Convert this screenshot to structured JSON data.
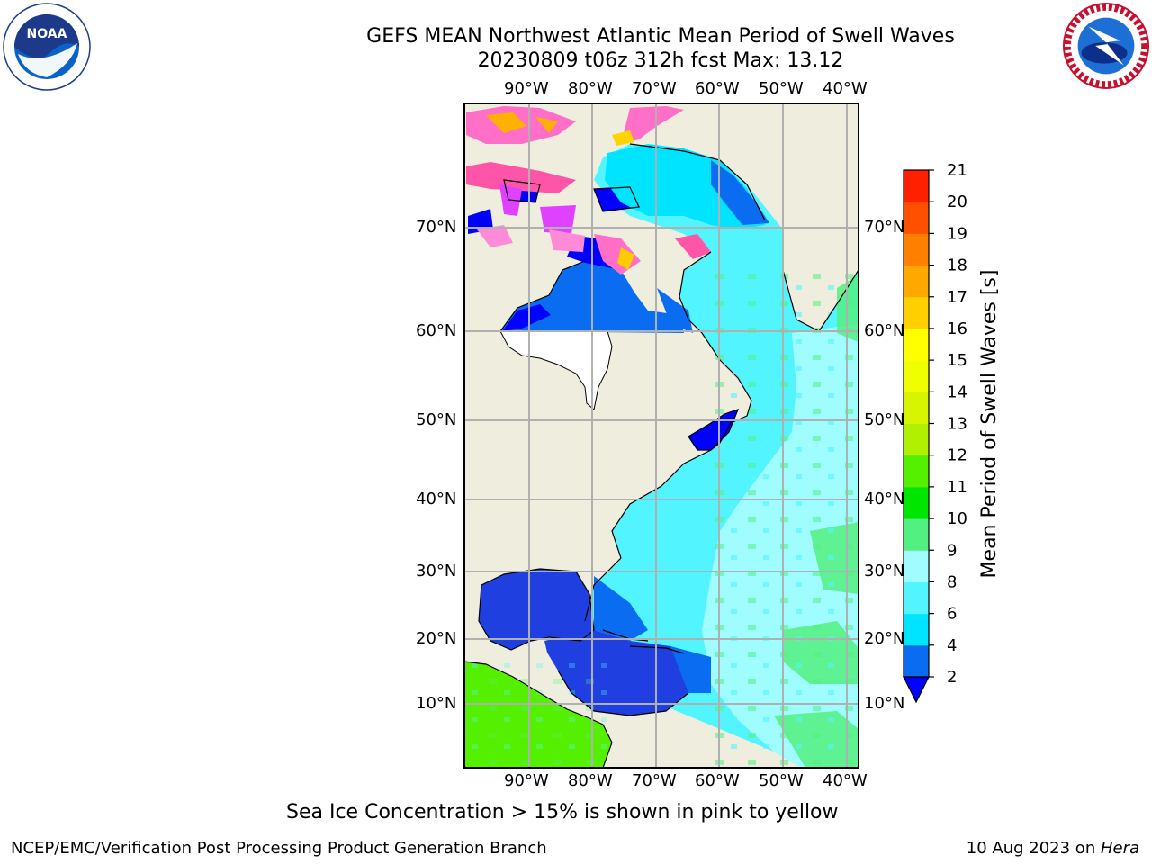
{
  "title_line1": "GEFS MEAN Northwest Atlantic Mean Period of Swell Waves",
  "title_line2": "20230809 t06z 312h fcst   Max: 13.12",
  "noaa_logo_text": "NOAA",
  "noaa_logo_ring": "NATIONAL OCEANIC AND ATMOSPHERIC ADMINISTRATION · U.S. DEPARTMENT OF COMMERCE",
  "nws_logo_ring": "NATIONAL WEATHER SERVICE",
  "lon_labels": [
    "90°W",
    "80°W",
    "70°W",
    "60°W",
    "50°W",
    "40°W"
  ],
  "lat_labels": [
    "70°N",
    "60°N",
    "50°N",
    "40°N",
    "30°N",
    "20°N",
    "10°N"
  ],
  "colorbar": {
    "label": "Mean Period of Swell Waves [s]",
    "ticks": [
      "2",
      "4",
      "6",
      "8",
      "9",
      "10",
      "11",
      "12",
      "13",
      "14",
      "15",
      "16",
      "17",
      "18",
      "19",
      "20",
      "21"
    ],
    "colors": [
      "#0a6cf0",
      "#00e4ff",
      "#52f5ff",
      "#a0fcff",
      "#52f080",
      "#00e600",
      "#55f000",
      "#b0f000",
      "#d8f500",
      "#f0ff00",
      "#ffff00",
      "#ffcf00",
      "#ffa800",
      "#ff8000",
      "#ff5000",
      "#ff2000"
    ],
    "under_color": "#0000ff"
  },
  "caption": "Sea Ice Concentration > 15% is shown in pink to yellow",
  "footer_left": "NCEP/EMC/Verification Post Processing Product Generation Branch",
  "footer_right_date": "10 Aug 2023 on ",
  "footer_right_host": "Hera"
}
